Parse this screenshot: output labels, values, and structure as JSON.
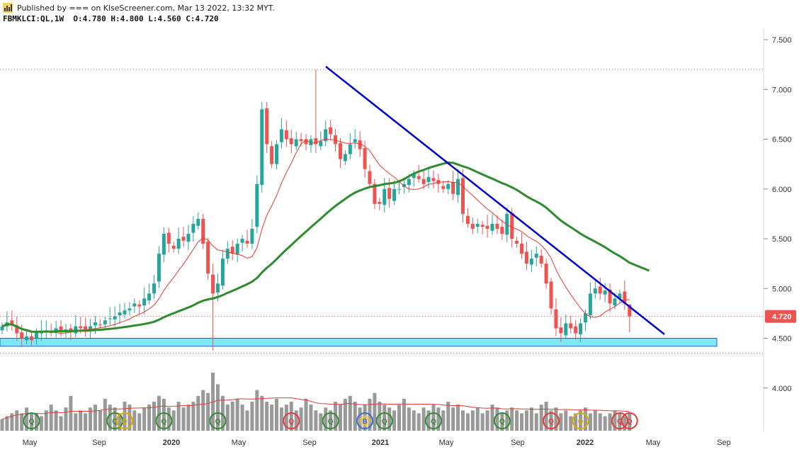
{
  "header": {
    "published": "Published by === on KlseScreener.com, Mar 13 2022, 13:32 MYT.",
    "ohlc_line": "FBMKLCI:QL,1W  O:4.780 H:4.800 L:4.560 C:4.720"
  },
  "colors": {
    "candle_up": "#26a69a",
    "candle_down": "#ef5350",
    "trendline": "#0000cc",
    "ma_long": "#2e8b2e",
    "ma_short": "#e53935",
    "support_zone": "#7ee6f7",
    "volume": "#999999",
    "price_label": "#ef5350",
    "badge_q": "#2e8b2e",
    "badge_q_red": "#e53935",
    "badge_q_gold": "#e0a800",
    "badge_b": "#3b6fd4"
  },
  "chart_data": {
    "type": "candlestick",
    "symbol": "FBMKLCI:QL",
    "interval": "1W",
    "y_ticks": [
      "7.500",
      "7.000",
      "6.500",
      "6.000",
      "5.500",
      "5.000",
      "4.500",
      "4.000"
    ],
    "y_range": [
      3.65,
      7.65
    ],
    "x_ticks": [
      "May",
      "Sep",
      "2020",
      "May",
      "Sep",
      "2021",
      "May",
      "Sep",
      "2022",
      "May",
      "Sep"
    ],
    "last_price_label": "4.720",
    "last_ohlc": {
      "open": 4.78,
      "high": 4.8,
      "low": 4.56,
      "close": 4.72
    },
    "reference_levels": [
      7.2,
      4.72,
      4.35
    ],
    "support_zone": [
      4.42,
      4.5
    ],
    "trendline": {
      "from": {
        "x": "2020-10",
        "y": 7.23
      },
      "to": {
        "x": "2022-04",
        "y": 4.54
      }
    },
    "closes": [
      4.62,
      4.66,
      4.64,
      4.55,
      4.5,
      4.52,
      4.48,
      4.56,
      4.57,
      4.58,
      4.56,
      4.6,
      4.58,
      4.59,
      4.57,
      4.62,
      4.6,
      4.58,
      4.62,
      4.66,
      4.64,
      4.68,
      4.7,
      4.72,
      4.76,
      4.78,
      4.8,
      4.85,
      4.82,
      4.9,
      4.95,
      5.05,
      5.35,
      5.55,
      5.45,
      5.4,
      5.5,
      5.48,
      5.55,
      5.65,
      5.7,
      5.45,
      5.15,
      4.95,
      5.05,
      5.3,
      5.4,
      5.35,
      5.45,
      5.5,
      5.45,
      5.6,
      6.05,
      6.8,
      6.45,
      6.25,
      6.45,
      6.6,
      6.5,
      6.45,
      6.5,
      6.48,
      6.45,
      6.5,
      6.45,
      6.48,
      6.6,
      6.55,
      6.45,
      6.3,
      6.35,
      6.45,
      6.5,
      6.4,
      6.2,
      6.05,
      5.85,
      5.85,
      6.0,
      5.9,
      6.0,
      6.0,
      6.05,
      6.1,
      6.15,
      6.1,
      6.05,
      6.12,
      6.08,
      6.05,
      6.0,
      6.05,
      5.95,
      6.1,
      5.75,
      5.65,
      5.6,
      5.65,
      5.62,
      5.6,
      5.65,
      5.6,
      5.55,
      5.75,
      5.5,
      5.45,
      5.35,
      5.25,
      5.3,
      5.35,
      5.25,
      5.05,
      4.8,
      4.6,
      4.55,
      4.65,
      4.6,
      4.55,
      4.65,
      4.75,
      4.95,
      5.0,
      4.95,
      4.98,
      4.85,
      4.9,
      4.95,
      4.85,
      4.72
    ],
    "volume_relative": [
      0.2,
      0.25,
      0.3,
      0.35,
      0.3,
      0.4,
      0.3,
      0.3,
      0.25,
      0.35,
      0.45,
      0.35,
      0.25,
      0.4,
      0.6,
      0.3,
      0.35,
      0.3,
      0.4,
      0.45,
      0.35,
      0.55,
      0.45,
      0.4,
      0.3,
      0.5,
      0.45,
      0.35,
      0.3,
      0.4,
      0.45,
      0.5,
      0.6,
      0.55,
      0.4,
      0.35,
      0.5,
      0.4,
      0.45,
      0.5,
      0.6,
      0.7,
      0.65,
      1.0,
      0.8,
      0.6,
      0.45,
      0.5,
      0.55,
      0.45,
      0.35,
      0.5,
      0.7,
      0.6,
      0.5,
      0.45,
      0.55,
      0.4,
      0.45,
      0.5,
      0.35,
      0.4,
      0.55,
      0.45,
      0.35,
      0.3,
      0.4,
      0.35,
      0.5,
      0.45,
      0.55,
      0.6,
      0.5,
      0.4,
      0.45,
      0.55,
      0.65,
      0.5,
      0.45,
      0.4,
      0.35,
      0.45,
      0.55,
      0.4,
      0.35,
      0.3,
      0.4,
      0.35,
      0.45,
      0.4,
      0.35,
      0.5,
      0.4,
      0.45,
      0.35,
      0.3,
      0.35,
      0.4,
      0.3,
      0.35,
      0.45,
      0.4,
      0.3,
      0.35,
      0.4,
      0.35,
      0.3,
      0.35,
      0.4,
      0.3,
      0.45,
      0.5,
      0.35,
      0.4,
      0.3,
      0.35,
      0.25,
      0.3,
      0.35,
      0.4,
      0.3,
      0.35,
      0.3,
      0.25,
      0.3,
      0.35,
      0.3,
      0.25,
      0.3
    ],
    "event_badges": [
      {
        "label": "Q",
        "color": "green",
        "index": 6
      },
      {
        "label": "Q",
        "color": "green",
        "index": 23
      },
      {
        "label": "Q",
        "color": "gold",
        "index": 25
      },
      {
        "label": "Q",
        "color": "green",
        "index": 33
      },
      {
        "label": "Q",
        "color": "green",
        "index": 44
      },
      {
        "label": "Q",
        "color": "red",
        "index": 59
      },
      {
        "label": "Q",
        "color": "green",
        "index": 67
      },
      {
        "label": "B",
        "color": "blue",
        "index": 74
      },
      {
        "label": "Q",
        "color": "green",
        "index": 78
      },
      {
        "label": "Q",
        "color": "green",
        "index": 88
      },
      {
        "label": "Q",
        "color": "green",
        "index": 102
      },
      {
        "label": "Q",
        "color": "red",
        "index": 112
      },
      {
        "label": "Q",
        "color": "gold",
        "index": 118
      },
      {
        "label": "Q",
        "color": "red",
        "index": 126
      },
      {
        "label": "Q",
        "color": "red",
        "index": 128
      }
    ]
  }
}
